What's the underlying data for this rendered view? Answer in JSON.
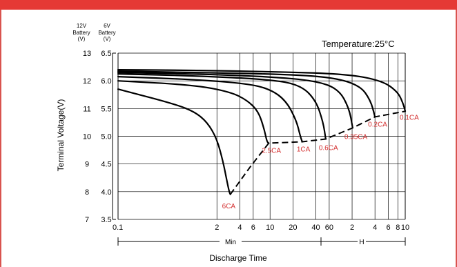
{
  "theme": {
    "accent": "#e53935",
    "curve_color": "#000000",
    "label_color": "#d32f2f",
    "grid_color": "#000000"
  },
  "chart_data": {
    "type": "line",
    "temperature_label": "Temperature:25°C",
    "ylabel": "Terminal Voltage(V)",
    "xlabel": "Discharge Time",
    "y_axis_12v_header": [
      "12V",
      "Battery",
      "(V)"
    ],
    "y_axis_6v_header": [
      "6V",
      "Battery",
      "(V)"
    ],
    "y_ticks_12v": [
      "7",
      "8",
      "9",
      "10",
      "11",
      "12",
      "13"
    ],
    "y_ticks_6v": [
      "3.5",
      "4.0",
      "4.5",
      "5.0",
      "5.5",
      "6.0",
      "6.5"
    ],
    "ylim_12v": [
      7,
      13
    ],
    "xscale": "log",
    "x_range_min": [
      0.1,
      600
    ],
    "x_ticks": [
      {
        "label": "0.1",
        "minutes": 0.1
      },
      {
        "label": "2",
        "minutes": 2
      },
      {
        "label": "4",
        "minutes": 4
      },
      {
        "label": "6",
        "minutes": 6
      },
      {
        "label": "10",
        "minutes": 10
      },
      {
        "label": "20",
        "minutes": 20
      },
      {
        "label": "40",
        "minutes": 40
      },
      {
        "label": "60",
        "minutes": 60
      },
      {
        "label": "2",
        "minutes": 120
      },
      {
        "label": "4",
        "minutes": 240
      },
      {
        "label": "6",
        "minutes": 360
      },
      {
        "label": "8",
        "minutes": 480
      },
      {
        "label": "10",
        "minutes": 600
      }
    ],
    "unit_min": "Min",
    "unit_h": "H",
    "series": [
      {
        "name": "6CA",
        "t": [
          0.1,
          0.5,
          1.0,
          1.5,
          2.0,
          2.4,
          2.7,
          2.9,
          3.0
        ],
        "v": [
          11.7,
          11.2,
          10.9,
          10.5,
          9.9,
          9.1,
          8.4,
          8.0,
          7.9
        ]
      },
      {
        "name": "2.5CA",
        "t": [
          0.1,
          1,
          3,
          5,
          7,
          8.3,
          9.1,
          9.6
        ],
        "v": [
          12.0,
          11.85,
          11.6,
          11.3,
          10.9,
          10.3,
          9.8,
          9.75
        ]
      },
      {
        "name": "1CA",
        "t": [
          0.1,
          1,
          5,
          10,
          16,
          22,
          25,
          26.5
        ],
        "v": [
          12.15,
          12.05,
          11.9,
          11.7,
          11.3,
          10.6,
          10.0,
          9.8
        ]
      },
      {
        "name": "0.6CA",
        "t": [
          0.1,
          1,
          10,
          25,
          40,
          50,
          54
        ],
        "v": [
          12.25,
          12.18,
          12.05,
          11.85,
          11.3,
          10.5,
          9.9
        ]
      },
      {
        "name": "0.35CA",
        "t": [
          0.1,
          1,
          10,
          40,
          80,
          110,
          122
        ],
        "v": [
          12.3,
          12.25,
          12.15,
          12.0,
          11.7,
          11.0,
          10.3
        ]
      },
      {
        "name": "0.2CA",
        "t": [
          0.1,
          1,
          10,
          60,
          150,
          210,
          240
        ],
        "v": [
          12.35,
          12.3,
          12.25,
          12.15,
          11.85,
          11.3,
          10.7
        ]
      },
      {
        "name": "0.1CA",
        "t": [
          0.1,
          1,
          10,
          100,
          300,
          480,
          560,
          600
        ],
        "v": [
          12.4,
          12.38,
          12.33,
          12.25,
          12.0,
          11.6,
          11.2,
          10.9
        ]
      }
    ],
    "end_voltage_line": {
      "t": [
        3.0,
        5.5,
        9.6,
        26.5,
        54,
        122,
        240,
        600
      ],
      "v": [
        7.9,
        8.9,
        9.75,
        9.8,
        9.9,
        10.3,
        10.7,
        10.9
      ]
    },
    "curve_labels": [
      "6CA",
      "2.5CA",
      "1CA",
      "0.6CA",
      "0.35CA",
      "0.2CA",
      "0.1CA"
    ]
  }
}
